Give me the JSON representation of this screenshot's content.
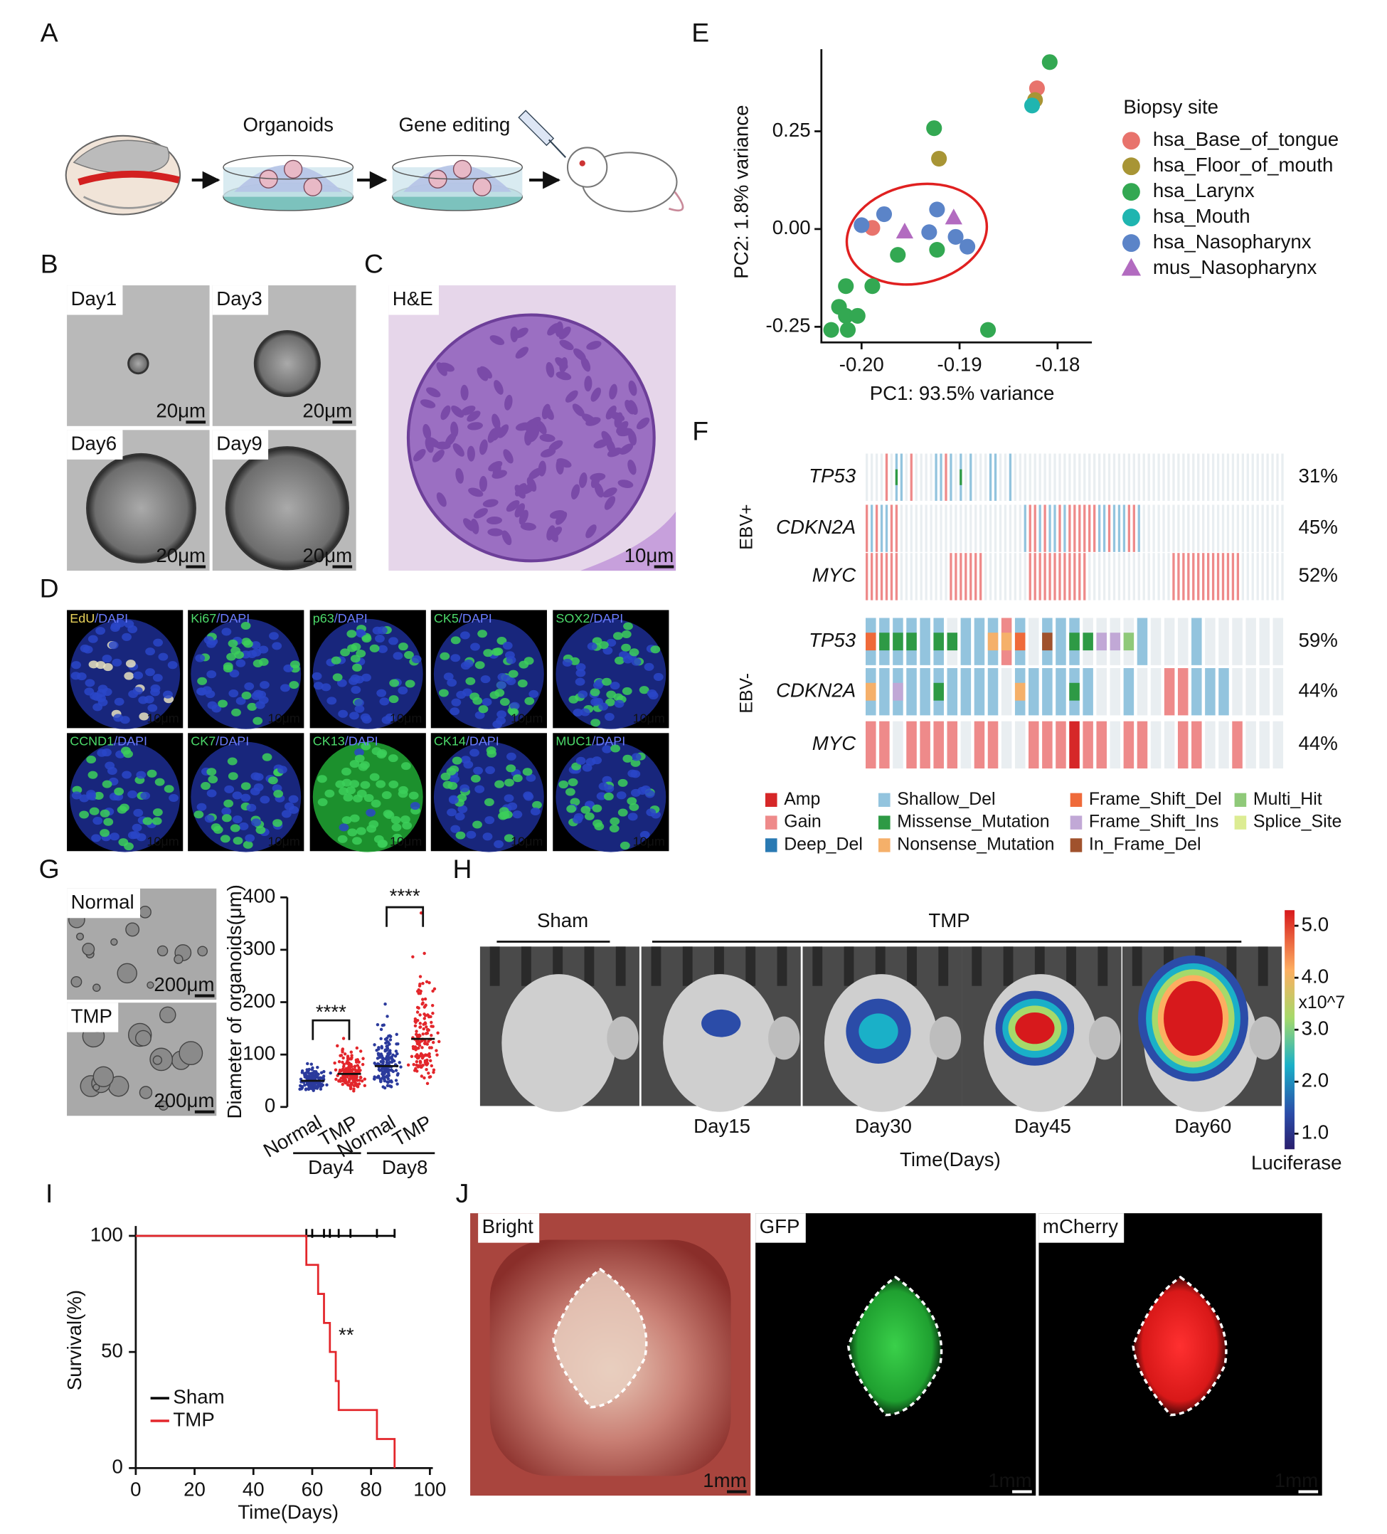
{
  "panels": [
    "A",
    "B",
    "C",
    "D",
    "E",
    "F",
    "G",
    "H",
    "I",
    "J"
  ],
  "panel_a": {
    "steps": [
      "Organoids",
      "Gene editing"
    ]
  },
  "panel_b": {
    "days": [
      "Day1",
      "Day3",
      "Day6",
      "Day9"
    ],
    "scale_bar": "20μm"
  },
  "panel_c": {
    "stain": "H&E",
    "scale_bar": "10μm"
  },
  "panel_d": {
    "markers": [
      "EdU",
      "Ki67",
      "p63",
      "CK5",
      "SOX2",
      "CCND1",
      "CK7",
      "CK13",
      "CK14",
      "MUC1"
    ],
    "counterstain": "/DAPI",
    "scale_bar": "10μm"
  },
  "panel_f": {
    "groups": [
      {
        "name": "EBV+",
        "genes": [
          "TP53",
          "CDKN2A",
          "MYC"
        ],
        "values": [
          31,
          45,
          52
        ],
        "value_labels": [
          "31%",
          "45%",
          "52%"
        ]
      },
      {
        "name": "EBV-",
        "genes": [
          "TP53",
          "CDKN2A",
          "MYC"
        ],
        "values": [
          59,
          44,
          44
        ],
        "value_labels": [
          "59%",
          "44%",
          "44%"
        ]
      }
    ],
    "legend": [
      {
        "name": "Amp",
        "color": "#d62728"
      },
      {
        "name": "Gain",
        "color": "#ee8a8a"
      },
      {
        "name": "Deep_Del",
        "color": "#2a7ab3"
      },
      {
        "name": "Shallow_Del",
        "color": "#93c4de"
      },
      {
        "name": "Missense_Mutation",
        "color": "#2e9a45"
      },
      {
        "name": "Nonsense_Mutation",
        "color": "#f5b06a"
      },
      {
        "name": "Frame_Shift_Del",
        "color": "#ef6a3a"
      },
      {
        "name": "Frame_Shift_Ins",
        "color": "#c1a8d6"
      },
      {
        "name": "In_Frame_Del",
        "color": "#a0522d"
      },
      {
        "name": "Multi_Hit",
        "color": "#8fc979"
      },
      {
        "name": "Splice_Site",
        "color": "#dcec93"
      }
    ]
  },
  "panel_g": {
    "images": [
      "Normal",
      "TMP"
    ],
    "scale_bar": "200μm"
  },
  "panel_h": {
    "groups": [
      "Sham",
      "TMP"
    ],
    "days": [
      "Day15",
      "Day30",
      "Day45",
      "Day60"
    ],
    "xlabel": "Time(Days)"
  },
  "panel_j": {
    "images": [
      "Bright",
      "GFP",
      "mCherry"
    ],
    "scale_bar": "1mm"
  },
  "chart_data": [
    {
      "type": "scatter",
      "xlabel": "PC1: 93.5% variance",
      "ylabel": "PC2: 1.8% variance",
      "legend_title": "Biopsy site",
      "legend_position": "right",
      "xlim": [
        -0.2041,
        -0.1765
      ],
      "ylim": [
        -0.29,
        0.46
      ],
      "xticks": [
        {
          "value": -0.2,
          "label": "-0.20"
        },
        -0.19,
        -0.18
      ],
      "yticks": [
        -0.25,
        {
          "value": 0,
          "label": "0.00"
        },
        0.25
      ],
      "series": [
        {
          "name": "hsa_Base_of_tongue",
          "color": "#e8736c",
          "marker": "circle",
          "x": [
            -0.1989,
            -0.1821
          ],
          "values": [
            0.003,
            0.36
          ]
        },
        {
          "name": "hsa_Floor_of_mouth",
          "color": "#a89535",
          "marker": "circle",
          "x": [
            -0.1921,
            -0.1823
          ],
          "values": [
            0.18,
            0.33
          ]
        },
        {
          "name": "hsa_Larynx",
          "color": "#33a852",
          "marker": "circle",
          "x": [
            -0.1808,
            -0.1926,
            -0.2016,
            -0.1989,
            -0.2023,
            -0.2016,
            -0.2004,
            -0.2031,
            -0.2014,
            -0.1963,
            -0.1923,
            -0.1871
          ],
          "values": [
            0.427,
            0.258,
            -0.146,
            -0.146,
            -0.199,
            -0.222,
            -0.222,
            -0.258,
            -0.258,
            -0.066,
            -0.053,
            -0.258
          ]
        },
        {
          "name": "hsa_Mouth",
          "color": "#1fb5b0",
          "marker": "circle",
          "x": [
            -0.1826
          ],
          "values": [
            0.316
          ]
        },
        {
          "name": "hsa_Nasopharynx",
          "color": "#5b84c8",
          "marker": "circle",
          "x": [
            -0.2,
            -0.1977,
            -0.1931,
            -0.1923,
            -0.1904,
            -0.1892
          ],
          "values": [
            0.01,
            0.038,
            -0.008,
            0.05,
            -0.02,
            -0.045
          ]
        },
        {
          "name": "mus_Nasopharynx",
          "color": "#b26bc0",
          "marker": "triangle",
          "x": [
            -0.1956,
            -0.1906
          ],
          "values": [
            -0.008,
            0.028
          ]
        }
      ]
    },
    {
      "type": "strip",
      "ylabel": "Diameter of organoids(μm)",
      "categories": [
        "Normal",
        "TMP",
        "Normal",
        "TMP"
      ],
      "groups": [
        "Day4",
        "Day8"
      ],
      "values": [
        50,
        63,
        78,
        130
      ],
      "colors": [
        "#2b3a9c",
        "#e3262b",
        "#2b3a9c",
        "#e3262b"
      ],
      "ylim": [
        0,
        400
      ],
      "yticks": [
        0,
        100,
        200,
        300,
        400
      ],
      "annotations": [
        "****",
        "****"
      ]
    },
    {
      "type": "colorbar",
      "ylim": [
        0.7,
        5.3
      ],
      "yticks": [
        {
          "value": 1,
          "label": "1.0"
        },
        {
          "value": 2,
          "label": "2.0"
        },
        {
          "value": 3,
          "label": "3.0"
        },
        {
          "value": 4,
          "label": "4.0"
        },
        {
          "value": 5,
          "label": "5.0"
        }
      ],
      "unit": "x10^7",
      "label": "Luciferase"
    },
    {
      "type": "line",
      "step": true,
      "xlabel": "Time(Days)",
      "ylabel": "Survival(%)",
      "xlim": [
        0,
        100
      ],
      "ylim": [
        0,
        100
      ],
      "xticks": [
        0,
        20,
        40,
        60,
        80,
        100
      ],
      "yticks": [
        0,
        50,
        100
      ],
      "annotations": [
        "**"
      ],
      "legend_position": "lower left",
      "series": [
        {
          "name": "Sham",
          "color": "#000000",
          "x": [
            0,
            88
          ],
          "values": [
            100,
            100
          ],
          "censored_x": [
            58,
            60,
            64,
            66,
            69,
            73,
            82,
            88
          ]
        },
        {
          "name": "TMP",
          "color": "#e3262b",
          "x": [
            0,
            58,
            62,
            64,
            66,
            68,
            69,
            82,
            88
          ],
          "values": [
            100,
            87.5,
            75,
            62.5,
            50,
            37.5,
            25,
            12.5,
            0
          ]
        }
      ]
    }
  ]
}
